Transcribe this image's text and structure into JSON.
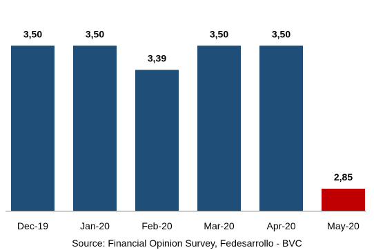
{
  "chart_data": {
    "type": "bar",
    "categories": [
      "Dec-19",
      "Jan-20",
      "Feb-20",
      "Mar-20",
      "Apr-20",
      "May-20"
    ],
    "values": [
      3.5,
      3.5,
      3.39,
      3.5,
      3.5,
      2.85
    ],
    "data_labels": [
      "3,50",
      "3,50",
      "3,39",
      "3,50",
      "3,50",
      "2,85"
    ],
    "colors": [
      "#1f4e79",
      "#1f4e79",
      "#1f4e79",
      "#1f4e79",
      "#1f4e79",
      "#c00000"
    ],
    "baseline_color": "#808080",
    "ylim": [
      2.75,
      3.62
    ],
    "grid": false,
    "legend": "none",
    "title": "",
    "xlabel": "",
    "ylabel": ""
  },
  "source": "Source: Financial Opinion Survey, Fedesarrollo - BVC"
}
